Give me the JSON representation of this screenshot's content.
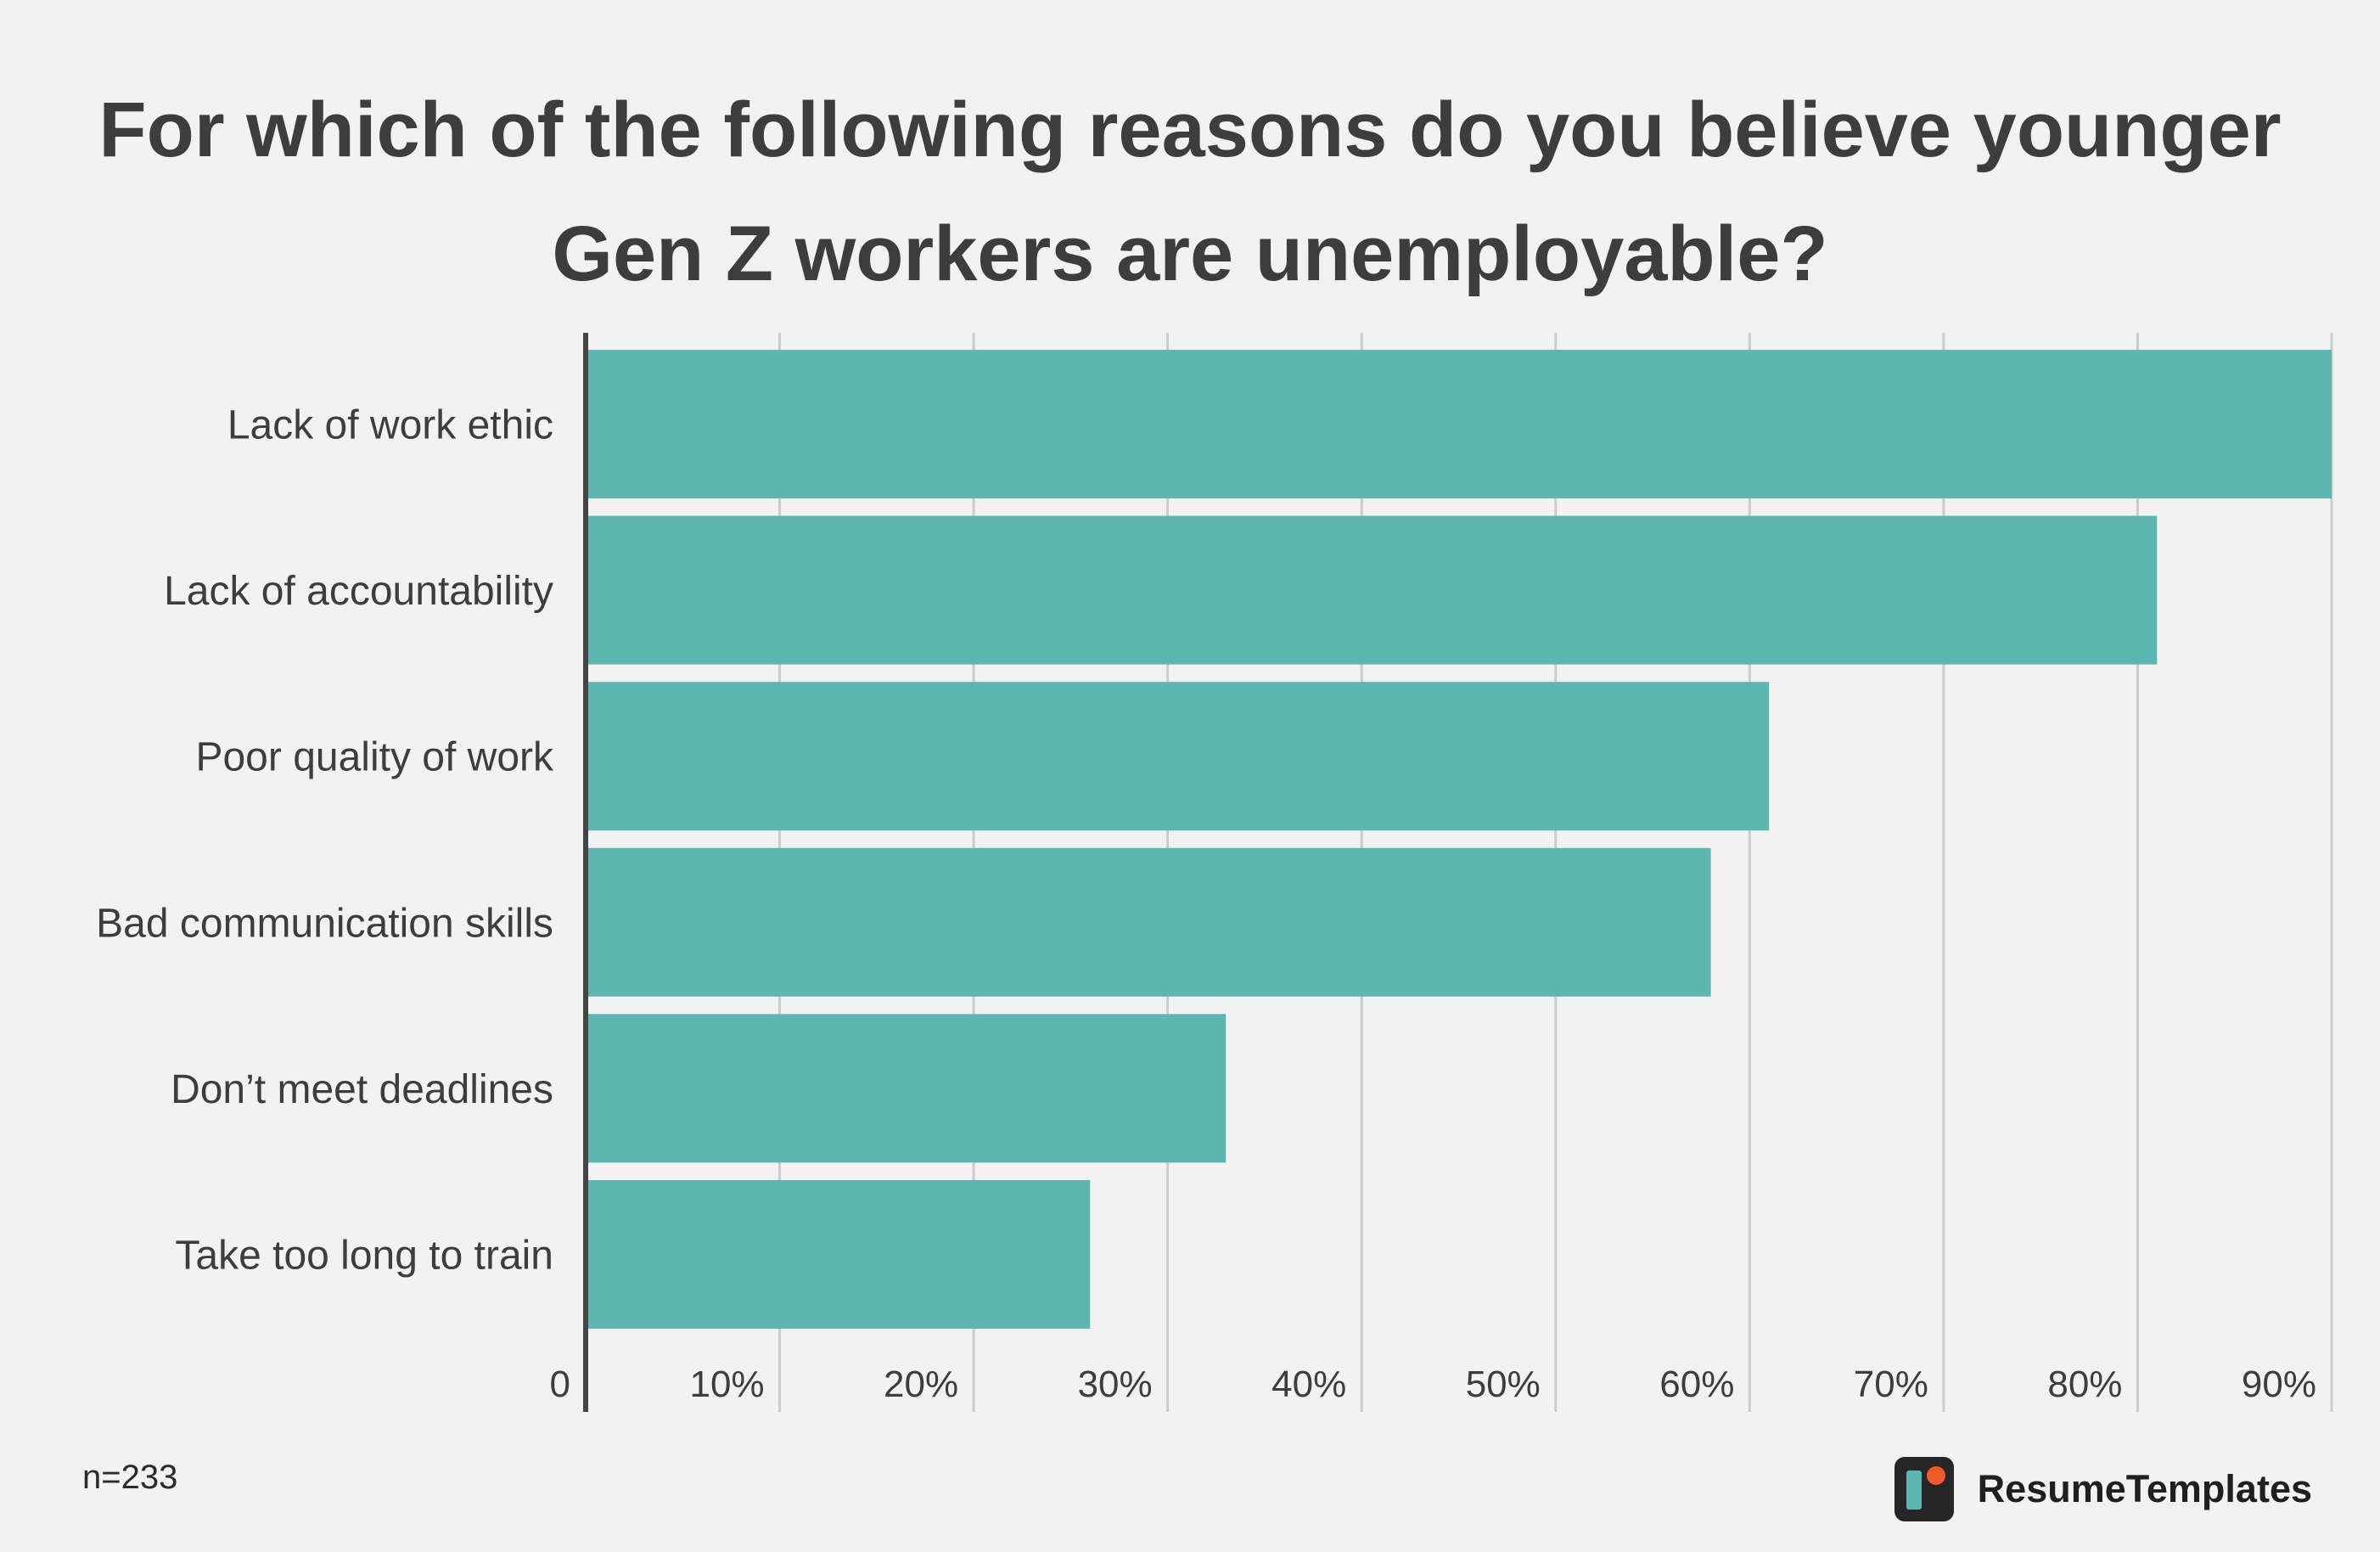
{
  "chart_data": {
    "type": "bar",
    "orientation": "horizontal",
    "title": "For which of the following reasons do you believe younger Gen Z workers are unemployable?",
    "categories": [
      "Lack of work ethic",
      "Lack of accountability",
      "Poor quality of work",
      "Bad communication skills",
      "Don’t meet deadlines",
      "Take too long to train"
    ],
    "values": [
      90,
      81,
      61,
      58,
      33,
      26
    ],
    "value_unit": "%",
    "xlim": [
      0,
      90
    ],
    "xticks": [
      0,
      10,
      20,
      30,
      40,
      50,
      60,
      70,
      80,
      90
    ],
    "xtick_labels": [
      "0",
      "10%",
      "20%",
      "30%",
      "40%",
      "50%",
      "60%",
      "70%",
      "80%",
      "90%"
    ],
    "xlabel": "",
    "ylabel": "",
    "grid": true,
    "colors": {
      "bar": "#5eb6b0",
      "grid": "#cccccc",
      "axis": "#444444",
      "text": "#3d3d3d",
      "background": "#f2f2f2"
    }
  },
  "footer": {
    "sample_size": "n=233",
    "brand_name": "ResumeTemplates",
    "brand_icon": "resumetemplates-logo-icon",
    "brand_colors": {
      "tile": "#262626",
      "bar": "#5eb6b0",
      "dot": "#f05a28"
    }
  }
}
